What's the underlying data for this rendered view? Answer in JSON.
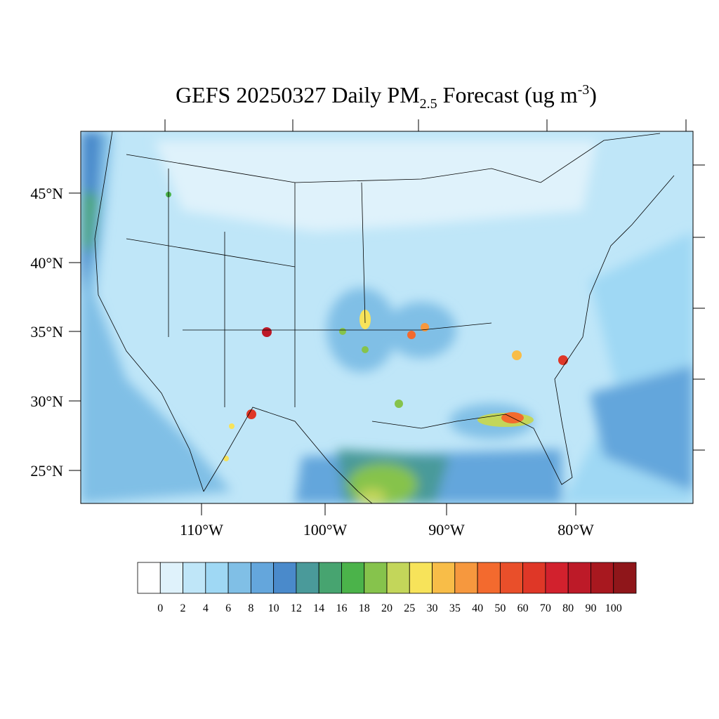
{
  "header": {
    "title_main": "GEFS 20250327 Daily PM",
    "title_sub": "2.5",
    "title_rest": " Forecast (ug m",
    "title_sup": "-3",
    "title_end": ")"
  },
  "lat_labels": [
    "45°N",
    "40°N",
    "35°N",
    "30°N",
    "25°N"
  ],
  "lon_labels": [
    "110°W",
    "100°W",
    "90°W",
    "80°W"
  ],
  "colorbar": {
    "labels": [
      "0",
      "2",
      "4",
      "6",
      "8",
      "10",
      "12",
      "14",
      "16",
      "18",
      "20",
      "25",
      "30",
      "35",
      "40",
      "50",
      "60",
      "70",
      "80",
      "90",
      "100"
    ],
    "colors": [
      "#ffffff",
      "#dff2fb",
      "#bfe6f8",
      "#9fd8f4",
      "#80bfe6",
      "#64a6dc",
      "#4a8acb",
      "#4a9a9a",
      "#47a470",
      "#4bb34a",
      "#86c34c",
      "#c3d65a",
      "#f7e35a",
      "#f8bd48",
      "#f6983e",
      "#f36a2e",
      "#e94f2a",
      "#df3727",
      "#d2212d",
      "#bd1a28",
      "#a8181f",
      "#8f161a"
    ]
  }
}
